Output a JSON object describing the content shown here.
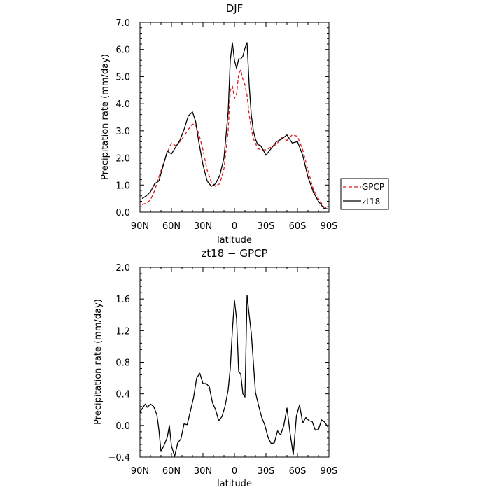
{
  "chart_data": [
    {
      "type": "line",
      "title": "DJF",
      "xlabel": "latitude",
      "ylabel": "Precipitation rate (mm/day)",
      "xlim": [
        90,
        -90
      ],
      "ylim": [
        0,
        7
      ],
      "x_ticks": [
        90,
        60,
        30,
        0,
        -30,
        -60,
        -90
      ],
      "x_tick_labels": [
        "90N",
        "60N",
        "30N",
        "0",
        "30S",
        "60S",
        "90S"
      ],
      "y_ticks": [
        0,
        1,
        2,
        3,
        4,
        5,
        6,
        7
      ],
      "y_tick_labels": [
        "0.0",
        "1.0",
        "2.0",
        "3.0",
        "4.0",
        "5.0",
        "6.0",
        "7.0"
      ],
      "legend_position": "right",
      "series": [
        {
          "name": "GPCP",
          "color": "#e41a1c",
          "dash": "dashed",
          "x": [
            88,
            84,
            80,
            76,
            72,
            68,
            64,
            60,
            56,
            52,
            48,
            44,
            40,
            37,
            34,
            30,
            26,
            22,
            18,
            14,
            10,
            6,
            4,
            2,
            0,
            -2,
            -4,
            -6,
            -8,
            -10,
            -12,
            -14,
            -16,
            -18,
            -20,
            -22,
            -25,
            -30,
            -35,
            -40,
            -45,
            -50,
            -55,
            -60,
            -65,
            -70,
            -75,
            -80,
            -85,
            -89
          ],
          "y": [
            0.28,
            0.33,
            0.45,
            0.8,
            1.3,
            1.75,
            2.2,
            2.55,
            2.45,
            2.6,
            2.8,
            3.05,
            3.25,
            3.2,
            2.9,
            2.3,
            1.55,
            1.1,
            0.95,
            1.05,
            1.6,
            3.0,
            4.5,
            4.65,
            4.2,
            4.35,
            5.1,
            5.25,
            4.9,
            4.7,
            4.3,
            3.6,
            3.1,
            2.7,
            2.55,
            2.35,
            2.3,
            2.3,
            2.4,
            2.5,
            2.75,
            2.65,
            2.85,
            2.8,
            2.3,
            1.55,
            0.85,
            0.5,
            0.2,
            0.15
          ]
        },
        {
          "name": "zt18",
          "color": "#000000",
          "dash": "solid",
          "x": [
            88,
            84,
            80,
            76,
            72,
            68,
            64,
            60,
            56,
            52,
            48,
            44,
            40,
            37,
            34,
            30,
            26,
            22,
            18,
            14,
            10,
            6,
            4,
            2,
            0,
            -2,
            -4,
            -6,
            -8,
            -10,
            -12,
            -14,
            -16,
            -18,
            -20,
            -22,
            -25,
            -30,
            -35,
            -40,
            -45,
            -50,
            -55,
            -60,
            -65,
            -70,
            -75,
            -80,
            -85,
            -89
          ],
          "y": [
            0.5,
            0.6,
            0.75,
            1.05,
            1.15,
            1.7,
            2.25,
            2.15,
            2.4,
            2.65,
            3.05,
            3.55,
            3.7,
            3.35,
            2.6,
            1.75,
            1.15,
            0.95,
            1.05,
            1.35,
            2.0,
            3.7,
            5.6,
            6.25,
            5.6,
            5.3,
            5.65,
            5.65,
            5.75,
            6.05,
            6.25,
            4.7,
            3.6,
            3.0,
            2.7,
            2.5,
            2.45,
            2.1,
            2.35,
            2.6,
            2.7,
            2.85,
            2.55,
            2.6,
            2.1,
            1.3,
            0.75,
            0.4,
            0.15,
            0.12
          ]
        }
      ]
    },
    {
      "type": "line",
      "title": "zt18 − GPCP",
      "xlabel": "latitude",
      "ylabel": "Precipitation rate (mm/day)",
      "xlim": [
        90,
        -90
      ],
      "ylim": [
        -0.4,
        2.0
      ],
      "x_ticks": [
        90,
        60,
        30,
        0,
        -30,
        -60,
        -90
      ],
      "x_tick_labels": [
        "90N",
        "60N",
        "30N",
        "0",
        "30S",
        "60S",
        "90S"
      ],
      "y_ticks": [
        -0.4,
        0.0,
        0.4,
        0.8,
        1.2,
        1.6,
        2.0
      ],
      "y_tick_labels": [
        "−0.4",
        "0.0",
        "0.4",
        "0.8",
        "1.2",
        "1.6",
        "2.0"
      ],
      "series": [
        {
          "color": "#000000",
          "dash": "solid",
          "x": [
            90,
            87,
            85,
            83,
            80,
            77,
            74,
            72,
            70,
            67,
            64,
            62,
            60,
            57,
            54,
            51,
            48,
            45,
            42,
            39,
            36,
            33,
            30,
            27,
            24,
            21,
            18,
            15,
            12,
            9,
            6,
            4,
            2,
            0,
            -2,
            -4,
            -6,
            -8,
            -10,
            -12,
            -14,
            -16,
            -18,
            -20,
            -23,
            -26,
            -29,
            -32,
            -35,
            -38,
            -41,
            -44,
            -47,
            -50,
            -53,
            -56,
            -59,
            -62,
            -65,
            -68,
            -71,
            -74,
            -77,
            -80,
            -83,
            -86,
            -89
          ],
          "y": [
            0.17,
            0.23,
            0.27,
            0.23,
            0.27,
            0.24,
            0.14,
            -0.05,
            -0.33,
            -0.25,
            -0.15,
            0.0,
            -0.26,
            -0.39,
            -0.22,
            -0.17,
            0.02,
            0.01,
            0.18,
            0.35,
            0.6,
            0.66,
            0.53,
            0.53,
            0.49,
            0.29,
            0.2,
            0.06,
            0.11,
            0.24,
            0.45,
            0.72,
            1.2,
            1.58,
            1.35,
            0.68,
            0.65,
            0.4,
            0.36,
            1.65,
            1.4,
            1.17,
            0.8,
            0.42,
            0.25,
            0.1,
            0.0,
            -0.15,
            -0.23,
            -0.22,
            -0.07,
            -0.12,
            0.0,
            0.22,
            -0.1,
            -0.37,
            0.12,
            0.26,
            0.03,
            0.1,
            0.06,
            0.05,
            -0.06,
            -0.05,
            0.07,
            0.04,
            -0.02
          ]
        }
      ]
    }
  ]
}
